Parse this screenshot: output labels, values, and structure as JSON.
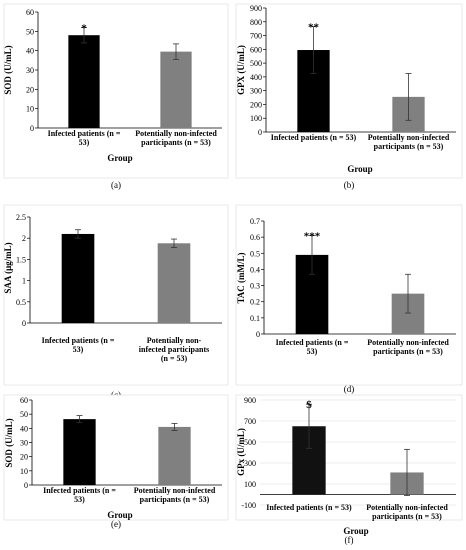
{
  "chart_data": [
    {
      "panel": "(a)",
      "type": "bar",
      "categories": [
        [
          "Infected patients (n =",
          "53)"
        ],
        [
          "Potentially non-infected",
          "participants (n = 53)"
        ]
      ],
      "values": [
        48,
        39.5
      ],
      "errors": [
        4,
        4
      ],
      "annotations": [
        "*",
        ""
      ],
      "colors": [
        "#000000",
        "#808080"
      ],
      "xlabel": "Group",
      "ylabel": "SOD (U/mL)",
      "ylim": [
        0,
        60
      ],
      "yticks": [
        "0",
        "10",
        "20",
        "30",
        "40",
        "50",
        "60"
      ],
      "grid": false
    },
    {
      "panel": "(b)",
      "type": "bar",
      "categories": [
        [
          "Infected patients (n = 53)"
        ],
        [
          "Potentially non-infected",
          "participants (n = 53)"
        ]
      ],
      "values": [
        595,
        255
      ],
      "errors": [
        170,
        170
      ],
      "annotations": [
        "**",
        ""
      ],
      "colors": [
        "#000000",
        "#808080"
      ],
      "xlabel": "Group",
      "ylabel": "GPX (U/mL)",
      "ylim": [
        0,
        900
      ],
      "yticks": [
        "0",
        "100",
        "200",
        "300",
        "400",
        "500",
        "600",
        "700",
        "800",
        "900"
      ],
      "grid": false
    },
    {
      "panel": "(c)",
      "type": "bar",
      "categories": [
        [
          "Infected patients (n =",
          "53)"
        ],
        [
          "Potentially non-",
          "infected participants",
          "(n = 53)"
        ]
      ],
      "values": [
        2.1,
        1.88
      ],
      "errors": [
        0.1,
        0.1
      ],
      "annotations": [
        "",
        ""
      ],
      "colors": [
        "#000000",
        "#808080"
      ],
      "xlabel": "",
      "ylabel": "SAA (μg/mL)",
      "ylim": [
        0,
        2.5
      ],
      "yticks": [
        "0",
        "0.5",
        "1",
        "1.5",
        "2",
        "2.5"
      ],
      "grid": false
    },
    {
      "panel": "(d)",
      "type": "bar",
      "categories": [
        [
          "Infected patients (n =",
          "53)"
        ],
        [
          "Potentially non-infected",
          "participants (n = 53)"
        ]
      ],
      "values": [
        0.49,
        0.25
      ],
      "errors": [
        0.12,
        0.12
      ],
      "annotations": [
        "***",
        ""
      ],
      "colors": [
        "#000000",
        "#808080"
      ],
      "xlabel": "",
      "ylabel": "TAC (mM/L)",
      "ylim": [
        0,
        0.7
      ],
      "yticks": [
        "0",
        "0.1",
        "0.2",
        "0.3",
        "0.4",
        "0.5",
        "0.6",
        "0.7"
      ],
      "grid": false
    },
    {
      "panel": "(e)",
      "type": "bar",
      "categories": [
        [
          "Infected patients (n =",
          "53)"
        ],
        [
          "Potentially non-infected",
          "participants (n = 53)"
        ]
      ],
      "values": [
        46.5,
        41
      ],
      "errors": [
        2.5,
        2.5
      ],
      "annotations": [
        "",
        ""
      ],
      "colors": [
        "#000000",
        "#808080"
      ],
      "xlabel": "Group",
      "ylabel": "SOD (U/mL)",
      "ylim": [
        0,
        60
      ],
      "yticks": [
        "0",
        "10",
        "20",
        "30",
        "40",
        "50",
        "60"
      ],
      "grid": false
    },
    {
      "panel": "(f)",
      "type": "bar",
      "categories": [
        [
          "Infected patients (n = 53)"
        ],
        [
          "Potentially non-infected",
          "participants (n = 53)"
        ]
      ],
      "values": [
        650,
        210
      ],
      "errors": [
        210,
        220
      ],
      "annotations": [
        "$",
        ""
      ],
      "colors": [
        "#111111",
        "#808080"
      ],
      "xlabel": "Group",
      "ylabel": "GPx (U/mL)",
      "ylim": [
        -100,
        900
      ],
      "yticks": [
        "-100",
        "100",
        "300",
        "500",
        "700",
        "900"
      ],
      "grid": true
    }
  ]
}
